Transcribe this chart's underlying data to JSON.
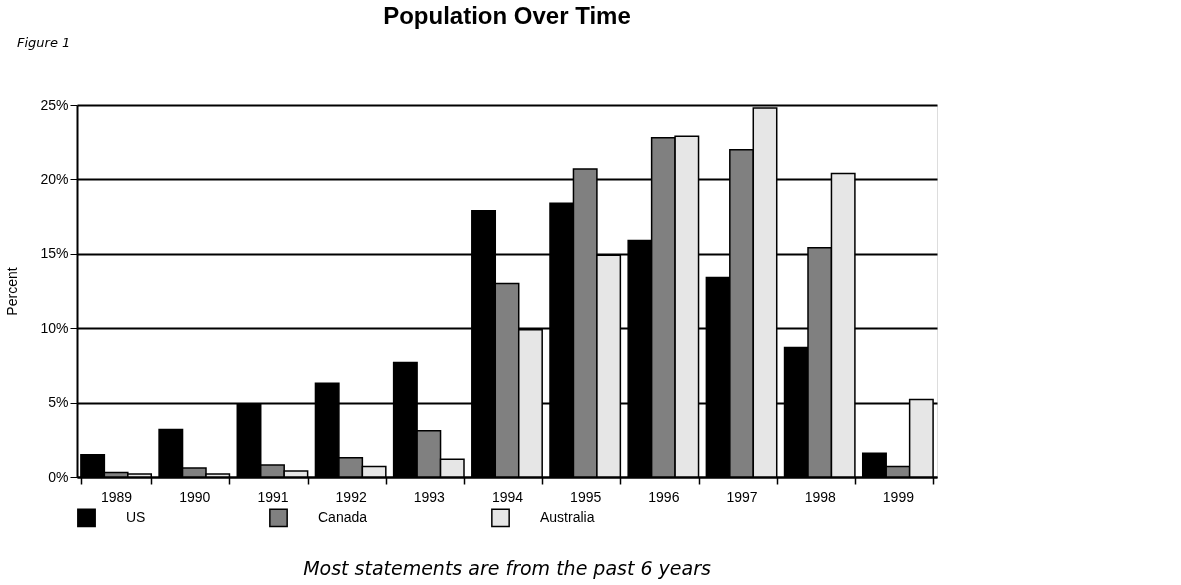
{
  "chart_data": {
    "type": "bar",
    "title": "Population Over Time",
    "ylabel": "Percent",
    "categories": [
      "1989",
      "1990",
      "1991",
      "1992",
      "1993",
      "1994",
      "1995",
      "1996",
      "1997",
      "1998",
      "1999"
    ],
    "series": [
      {
        "name": "US",
        "color": "#000000",
        "values": [
          1.5,
          3.2,
          4.9,
          6.3,
          7.7,
          17.9,
          18.4,
          15.9,
          13.4,
          8.7,
          1.6
        ]
      },
      {
        "name": "Canada",
        "color": "#808080",
        "values": [
          0.3,
          0.6,
          0.8,
          1.3,
          3.1,
          13.0,
          20.7,
          22.8,
          22.0,
          15.4,
          0.7
        ]
      },
      {
        "name": "Australia",
        "color": "#e6e6e6",
        "values": [
          0.2,
          0.2,
          0.4,
          0.7,
          1.2,
          9.9,
          14.9,
          22.9,
          24.8,
          20.4,
          5.2
        ]
      }
    ],
    "ylim": [
      0,
      25
    ],
    "yticks": [
      {
        "value": 0,
        "label": "0%"
      },
      {
        "value": 5,
        "label": "5%"
      },
      {
        "value": 10,
        "label": "10%"
      },
      {
        "value": 15,
        "label": "15%"
      },
      {
        "value": 20,
        "label": "20%"
      },
      {
        "value": 25,
        "label": "25%"
      }
    ],
    "grid": "y",
    "legend": "bottom",
    "annotations": [
      "Figure 1",
      "Most statements are from the past 6 years"
    ]
  }
}
